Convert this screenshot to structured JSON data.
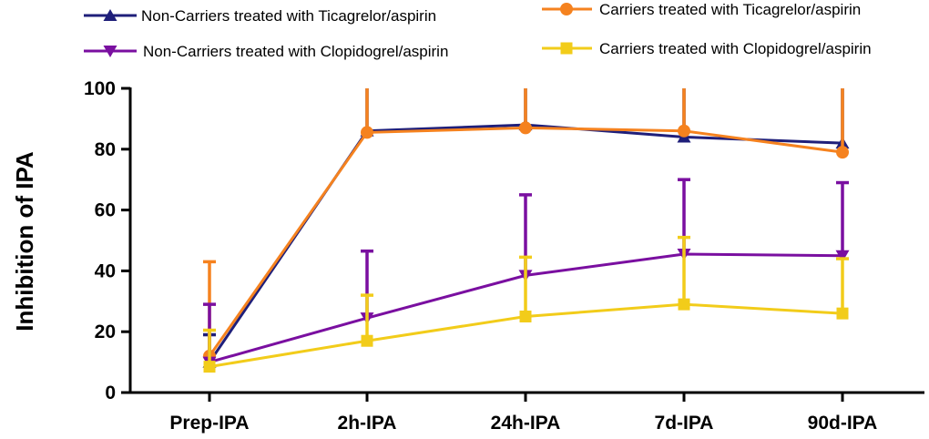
{
  "chart_data": {
    "type": "line",
    "title": "",
    "xlabel": "",
    "ylabel": "Inhibition of IPA",
    "categories": [
      "Prep-IPA",
      "2h-IPA",
      "24h-IPA",
      "7d-IPA",
      "90d-IPA"
    ],
    "ylim": [
      0,
      100
    ],
    "yticks": [
      "0",
      "20",
      "40",
      "60",
      "80",
      "100"
    ],
    "grid": false,
    "legend_position": "top",
    "series": [
      {
        "name": "Non-Carriers treated with Ticagrelor/aspirin",
        "color": "#1f1f7a",
        "marker": "triangle-up",
        "values": [
          10,
          86,
          88,
          84,
          82
        ],
        "error_upper": [
          19,
          100,
          100,
          100,
          100
        ]
      },
      {
        "name": "Carriers treated with Ticagrelor/aspirin",
        "color": "#f5821f",
        "marker": "circle",
        "values": [
          12,
          85.5,
          87,
          86,
          79
        ],
        "error_upper": [
          43,
          100,
          100,
          100,
          100
        ]
      },
      {
        "name": "Non-Carriers treated with Clopidogrel/aspirin",
        "color": "#7a0fa0",
        "marker": "triangle-down",
        "values": [
          10,
          24.5,
          38.5,
          45.5,
          45
        ],
        "error_upper": [
          29,
          46.5,
          65,
          70,
          69
        ]
      },
      {
        "name": "Carriers treated with Clopidogrel/aspirin",
        "color": "#f2cc1a",
        "marker": "square",
        "values": [
          8.5,
          17,
          25,
          29,
          26
        ],
        "error_upper": [
          20.5,
          32,
          44.5,
          51,
          44
        ]
      }
    ]
  }
}
